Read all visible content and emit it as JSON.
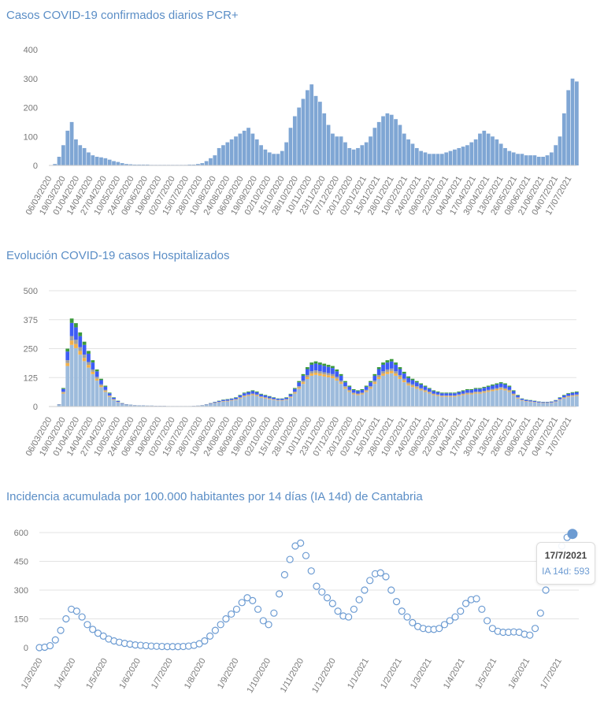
{
  "chart_data": [
    {
      "type": "bar",
      "title": "Casos COVID-19 confirmados diarios PCR+",
      "start_date": "06/03/2020",
      "step_days": 4,
      "ylim": [
        0,
        400
      ],
      "yticks": [
        0,
        100,
        200,
        300,
        400
      ],
      "color": "#7fa6d4",
      "xtick_labels": [
        "06/03/2020",
        "19/03/2020",
        "01/04/2020",
        "14/04/2020",
        "27/04/2020",
        "10/05/2020",
        "24/05/2020",
        "06/06/2020",
        "19/06/2020",
        "02/07/2020",
        "15/07/2020",
        "28/07/2020",
        "10/08/2020",
        "24/08/2020",
        "06/09/2020",
        "19/09/2020",
        "02/10/2020",
        "15/10/2020",
        "28/10/2020",
        "10/11/2020",
        "23/11/2020",
        "07/12/2020",
        "20/12/2020",
        "02/01/2021",
        "15/01/2021",
        "28/01/2021",
        "10/02/2021",
        "24/02/2021",
        "09/03/2021",
        "22/03/2021",
        "04/04/2021",
        "17/04/2021",
        "30/04/2021",
        "13/05/2021",
        "26/05/2021",
        "08/06/2021",
        "21/06/2021",
        "04/07/2021",
        "17/07/2021"
      ],
      "values": [
        0,
        5,
        30,
        70,
        120,
        150,
        90,
        70,
        60,
        45,
        35,
        30,
        28,
        25,
        20,
        15,
        12,
        8,
        5,
        4,
        3,
        3,
        3,
        3,
        2,
        2,
        2,
        2,
        2,
        2,
        2,
        2,
        2,
        3,
        3,
        5,
        8,
        15,
        25,
        35,
        60,
        70,
        80,
        90,
        100,
        110,
        120,
        130,
        110,
        90,
        70,
        55,
        45,
        40,
        40,
        50,
        80,
        130,
        170,
        200,
        230,
        260,
        280,
        240,
        220,
        180,
        140,
        110,
        100,
        100,
        80,
        60,
        55,
        60,
        70,
        80,
        100,
        130,
        150,
        170,
        180,
        175,
        160,
        140,
        110,
        90,
        75,
        60,
        50,
        45,
        40,
        40,
        40,
        40,
        45,
        50,
        55,
        60,
        65,
        70,
        80,
        90,
        110,
        120,
        110,
        100,
        90,
        75,
        60,
        50,
        45,
        40,
        40,
        35,
        35,
        35,
        30,
        30,
        35,
        45,
        70,
        100,
        180,
        260,
        300,
        290
      ]
    },
    {
      "type": "bar",
      "stacked": true,
      "title": "Evolución COVID-19 casos  Hospitalizados",
      "start_date": "06/03/2020",
      "step_days": 4,
      "ylim": [
        0,
        500
      ],
      "yticks": [
        0,
        125,
        250,
        375,
        500
      ],
      "layer_shares": [
        0.7,
        0.05,
        0.05,
        0.15,
        0.05
      ],
      "layer_colors": [
        "#9dbbdc",
        "#f2b04a",
        "#a0a0a0",
        "#3d5cf5",
        "#3c9a3c"
      ],
      "totals": [
        0,
        0,
        10,
        80,
        250,
        380,
        360,
        320,
        280,
        240,
        200,
        160,
        120,
        90,
        60,
        40,
        25,
        15,
        10,
        8,
        6,
        5,
        5,
        4,
        4,
        3,
        3,
        3,
        2,
        2,
        2,
        2,
        2,
        2,
        3,
        4,
        6,
        10,
        15,
        20,
        25,
        30,
        32,
        35,
        40,
        50,
        60,
        65,
        70,
        65,
        55,
        50,
        45,
        40,
        35,
        35,
        40,
        55,
        80,
        110,
        140,
        170,
        190,
        195,
        190,
        185,
        180,
        175,
        160,
        140,
        110,
        90,
        75,
        70,
        75,
        90,
        110,
        140,
        170,
        190,
        200,
        205,
        190,
        170,
        150,
        130,
        120,
        110,
        100,
        90,
        80,
        70,
        65,
        60,
        60,
        60,
        60,
        65,
        70,
        75,
        75,
        80,
        80,
        85,
        90,
        95,
        100,
        105,
        100,
        90,
        70,
        50,
        35,
        30,
        28,
        25,
        22,
        20,
        20,
        22,
        28,
        40,
        50,
        58,
        62,
        65
      ]
    },
    {
      "type": "scatter",
      "title": "Incidencia acumulada por 100.000 habitantes por 14 días (IA 14d) de Cantabria",
      "start_date": "1/3/2020",
      "step_days": 5,
      "ylim": [
        0,
        600
      ],
      "yticks": [
        0,
        150,
        300,
        450,
        600
      ],
      "color": "#6c9bd2",
      "xtick_labels": [
        "1/3/2020",
        "1/4/2020",
        "1/5/2020",
        "1/6/2020",
        "1/7/2020",
        "1/8/2020",
        "1/9/2020",
        "1/10/2020",
        "1/11/2020",
        "1/12/2020",
        "1/1/2021",
        "1/2/2021",
        "1/3/2021",
        "1/4/2021",
        "1/5/2021",
        "1/6/2021",
        "1/7/2021"
      ],
      "values": [
        0,
        2,
        10,
        40,
        90,
        150,
        200,
        190,
        160,
        120,
        95,
        75,
        60,
        45,
        35,
        28,
        22,
        18,
        14,
        12,
        10,
        8,
        7,
        6,
        5,
        5,
        5,
        6,
        8,
        12,
        20,
        35,
        60,
        90,
        120,
        150,
        175,
        200,
        235,
        260,
        245,
        200,
        140,
        120,
        180,
        280,
        380,
        460,
        530,
        545,
        480,
        400,
        320,
        290,
        260,
        230,
        190,
        165,
        160,
        200,
        250,
        300,
        350,
        385,
        390,
        370,
        300,
        240,
        190,
        160,
        130,
        110,
        100,
        95,
        95,
        100,
        120,
        140,
        160,
        190,
        230,
        250,
        255,
        200,
        140,
        100,
        85,
        80,
        80,
        82,
        80,
        70,
        65,
        100,
        180,
        300,
        400,
        480,
        530,
        575,
        593
      ],
      "tooltip": {
        "date": "17/7/2021",
        "label": "IA 14d: 593"
      }
    }
  ]
}
